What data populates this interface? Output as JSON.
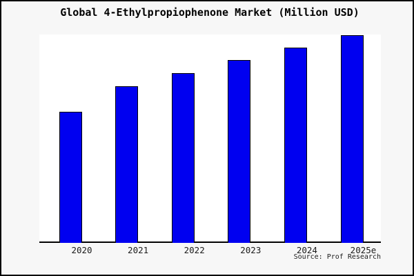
{
  "title": "Global 4-Ethylpropiophenone Market (Million USD)",
  "source": "Source: Prof Research",
  "colors": {
    "page_background": "#f7f7f7",
    "plot_background": "#ffffff",
    "bar_fill": "#0000f0",
    "bar_border": "#000000",
    "axis": "#000000",
    "frame_border": "#000000",
    "text": "#000000"
  },
  "chart_data": {
    "type": "bar",
    "title": "Global 4-Ethylpropiophenone Market (Million USD)",
    "categories": [
      "2020",
      "2021",
      "2022",
      "2023",
      "2024",
      "2025e"
    ],
    "values": [
      63.1,
      75.5,
      81.8,
      88,
      94,
      100
    ],
    "values_note": "No y-axis or data labels shown; values estimated from bar heights as relative index with 2025e = 100",
    "xlabel": "",
    "ylabel": "",
    "ylim": [
      0,
      100
    ],
    "grid": false,
    "legend": null,
    "bar_color": "#0000f0",
    "bar_border_color": "#000000",
    "source_label": "Source: Prof Research"
  }
}
